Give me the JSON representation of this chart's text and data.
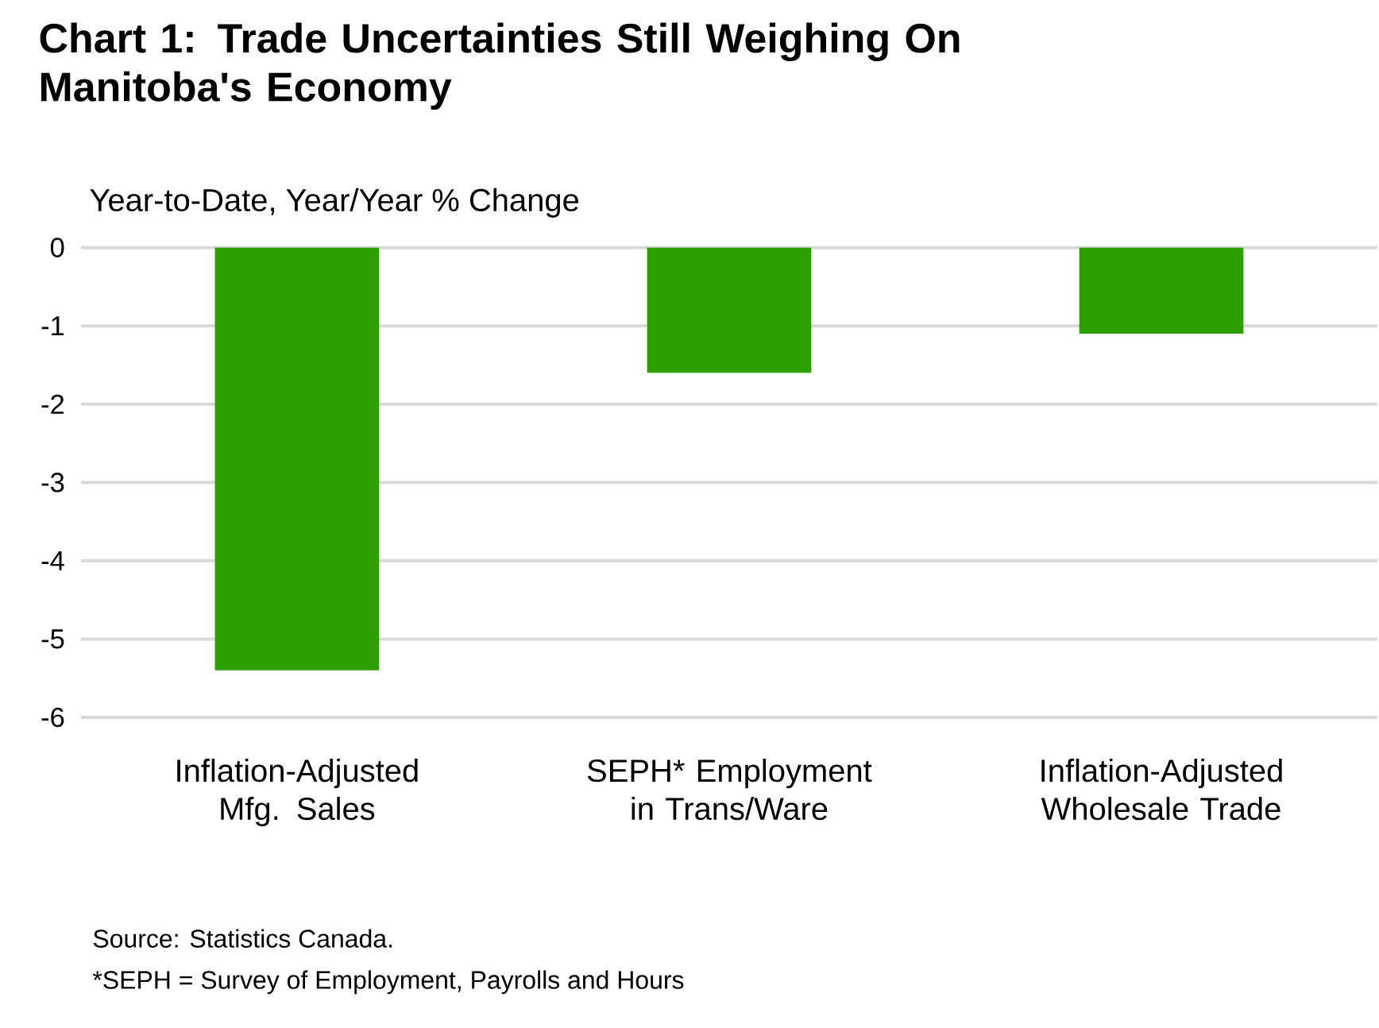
{
  "chart_data": {
    "type": "bar",
    "title": "Chart 1: Trade Uncertainties Still Weighing On Manitoba's Economy",
    "ylabel": "Year-to-Date, Year/Year % Change",
    "categories": [
      "Inflation-Adjusted Mfg. Sales",
      "SEPH* Employment in Trans/Ware",
      "Inflation-Adjusted Wholesale Trade"
    ],
    "values": [
      -5.4,
      -1.6,
      -1.1
    ],
    "color": "#2ca000",
    "ylim": [
      -6,
      0
    ],
    "yticks": [
      -6,
      -5,
      -4,
      -3,
      -2,
      -1,
      0
    ],
    "grid": "y",
    "annotations": [
      "Source: Statistics Canada.",
      "*SEPH = Survey of Employment, Payrolls and Hours"
    ]
  }
}
